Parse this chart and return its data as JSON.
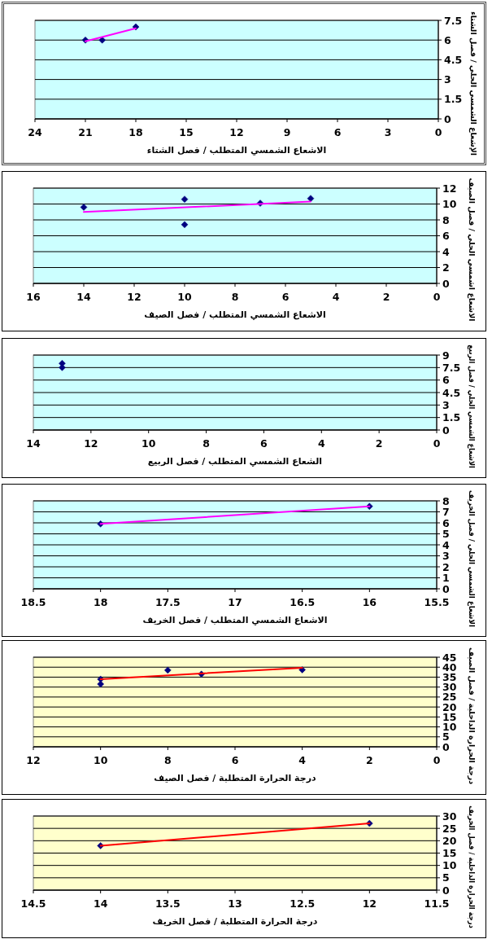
{
  "chart_data": [
    {
      "type": "scatter",
      "xlabel": "الاشعاع الشمسي المتطلب / فصل الشتاء",
      "ylabel": "الإشعاع الشمسي الحلي / فصل الشتاء",
      "xlim": [
        24,
        0
      ],
      "xticks": [
        24,
        21,
        18,
        15,
        12,
        9,
        6,
        3,
        0
      ],
      "ylim": [
        0,
        7.5
      ],
      "yticks": [
        0,
        1.5,
        3,
        4.5,
        6,
        7.5
      ],
      "grid": "y",
      "series": [
        {
          "type": "scatter",
          "color": "#000080",
          "marker": "diamond",
          "x": [
            21,
            20,
            18
          ],
          "values": [
            6,
            6,
            7
          ]
        },
        {
          "type": "line",
          "color": "#ff00ff",
          "marker": "none",
          "line_style": "solid",
          "x": [
            21,
            18
          ],
          "values": [
            5.9,
            6.9
          ]
        }
      ]
    },
    {
      "type": "scatter",
      "xlabel": "الاشعاع الشمسي المتطلب / فصل الصيف",
      "ylabel": "الاشعاع اشمسي الحلي / فصل الصيف",
      "xlim": [
        16,
        0
      ],
      "xticks": [
        16,
        14,
        12,
        10,
        8,
        6,
        4,
        2,
        0
      ],
      "ylim": [
        0,
        12
      ],
      "yticks": [
        0,
        2,
        4,
        6,
        8,
        10,
        12
      ],
      "grid": "y",
      "series": [
        {
          "type": "scatter",
          "color": "#000080",
          "marker": "diamond",
          "x": [
            14,
            10,
            10,
            7,
            5
          ],
          "values": [
            9.6,
            10.6,
            7.4,
            10.1,
            10.7
          ]
        },
        {
          "type": "line",
          "color": "#ff00ff",
          "marker": "none",
          "line_style": "solid",
          "x": [
            14,
            5
          ],
          "values": [
            9.0,
            10.3
          ]
        }
      ]
    },
    {
      "type": "scatter",
      "xlabel": "الشعاع الشمسي المتطلب / فصل الربيع",
      "ylabel": "الاشعاع الشمسي الحلي / فصل الربيع",
      "xlim": [
        14,
        0
      ],
      "xticks": [
        14,
        12,
        10,
        8,
        6,
        4,
        2,
        0
      ],
      "ylim": [
        0,
        9
      ],
      "yticks": [
        0,
        1.5,
        3,
        4.5,
        6,
        7.5,
        9
      ],
      "grid": "y",
      "series": [
        {
          "type": "scatter",
          "color": "#000080",
          "marker": "diamond",
          "x": [
            13,
            13
          ],
          "values": [
            8,
            7.5
          ]
        }
      ]
    },
    {
      "type": "scatter",
      "xlabel": "الاشعاع الشمسي المتطلب / فصل الخريف",
      "ylabel": "الاشعاع الشمسي الحلي / فصل الخريف",
      "xlim": [
        18.5,
        15.5
      ],
      "xticks": [
        18.5,
        18,
        17.5,
        17,
        16.5,
        16,
        15.5
      ],
      "ylim": [
        0,
        8
      ],
      "yticks": [
        0,
        1,
        2,
        3,
        4,
        5,
        6,
        7,
        8
      ],
      "grid": "y",
      "series": [
        {
          "type": "scatter",
          "color": "#000080",
          "marker": "diamond",
          "x": [
            18,
            16
          ],
          "values": [
            5.9,
            7.5
          ]
        },
        {
          "type": "line",
          "color": "#ff00ff",
          "marker": "none",
          "line_style": "solid",
          "x": [
            18,
            16
          ],
          "values": [
            5.9,
            7.5
          ]
        }
      ]
    },
    {
      "type": "scatter",
      "xlabel": "درجة الحرارة المتطلبة / فصل الصيف",
      "ylabel": "درجة الحرارة الداخلية / فصل الصيف",
      "xlim": [
        12,
        0
      ],
      "xticks": [
        12,
        10,
        8,
        6,
        4,
        2,
        0
      ],
      "ylim": [
        0,
        45
      ],
      "yticks": [
        0,
        5,
        10,
        15,
        20,
        25,
        30,
        35,
        40,
        45
      ],
      "grid": "y",
      "series": [
        {
          "type": "scatter",
          "color": "#000080",
          "marker": "diamond",
          "x": [
            10,
            10,
            8,
            7,
            4
          ],
          "values": [
            34,
            31.5,
            38.5,
            36.5,
            38.7
          ]
        },
        {
          "type": "line",
          "color": "#ff0000",
          "marker": "none",
          "line_style": "solid",
          "x": [
            10,
            4
          ],
          "values": [
            34,
            39.7
          ]
        }
      ]
    },
    {
      "type": "scatter",
      "xlabel": "درجة الحرارة المتطلبة / فصل الخريف",
      "ylabel": "درجة الحرارة الداخلية / فصل الخريف",
      "xlim": [
        14.5,
        11.5
      ],
      "xticks": [
        14.5,
        14,
        13.5,
        13,
        12.5,
        12,
        11.5
      ],
      "ylim": [
        0,
        30
      ],
      "yticks": [
        0,
        5,
        10,
        15,
        20,
        25,
        30
      ],
      "grid": "y",
      "series": [
        {
          "type": "scatter",
          "color": "#000080",
          "marker": "diamond",
          "x": [
            14,
            12
          ],
          "values": [
            18,
            27
          ]
        },
        {
          "type": "line",
          "color": "#ff0000",
          "marker": "none",
          "line_style": "solid",
          "x": [
            14,
            12
          ],
          "values": [
            18,
            27
          ]
        }
      ]
    }
  ]
}
